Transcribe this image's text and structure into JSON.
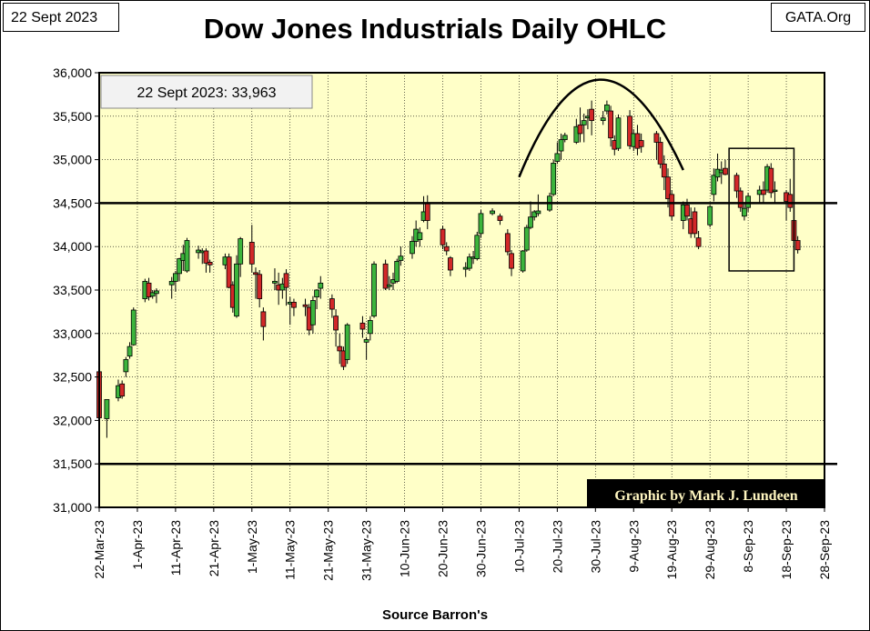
{
  "header": {
    "date_tag": "22 Sept 2023",
    "source_tag": "GATA.Org",
    "title": "Dow Jones Industrials Daily OHLC"
  },
  "footer": {
    "source": "Source Barron's"
  },
  "colors": {
    "plot_bg": "#ffffc8",
    "up": "#3cb43c",
    "down": "#d22828",
    "grid": "#000000",
    "credit_bg": "#000000",
    "credit_text": "#fff6c0"
  },
  "chart_data": {
    "type": "ohlc-candlestick",
    "title": "Dow Jones Industrials Daily OHLC",
    "xlabel": "Source Barron's",
    "ylabel": "",
    "ylim": [
      31000,
      36000
    ],
    "y_ticks": [
      31000,
      31500,
      32000,
      32500,
      33000,
      33500,
      34000,
      34500,
      35000,
      35500,
      36000
    ],
    "y_tick_labels": [
      "31,000",
      "31,500",
      "32,000",
      "32,500",
      "33,000",
      "33,500",
      "34,000",
      "34,500",
      "35,000",
      "35,500",
      "36,000"
    ],
    "x_range_days": [
      0,
      190
    ],
    "x_ticks": [
      {
        "label": "22-Mar-23",
        "day": 0
      },
      {
        "label": "1-Apr-23",
        "day": 10
      },
      {
        "label": "11-Apr-23",
        "day": 20
      },
      {
        "label": "21-Apr-23",
        "day": 30
      },
      {
        "label": "1-May-23",
        "day": 40
      },
      {
        "label": "11-May-23",
        "day": 50
      },
      {
        "label": "21-May-23",
        "day": 60
      },
      {
        "label": "31-May-23",
        "day": 70
      },
      {
        "label": "10-Jun-23",
        "day": 80
      },
      {
        "label": "20-Jun-23",
        "day": 90
      },
      {
        "label": "30-Jun-23",
        "day": 100
      },
      {
        "label": "10-Jul-23",
        "day": 110
      },
      {
        "label": "20-Jul-23",
        "day": 120
      },
      {
        "label": "30-Jul-23",
        "day": 130
      },
      {
        "label": "9-Aug-23",
        "day": 140
      },
      {
        "label": "19-Aug-23",
        "day": 150
      },
      {
        "label": "29-Aug-23",
        "day": 160
      },
      {
        "label": "8-Sep-23",
        "day": 170
      },
      {
        "label": "18-Sep-23",
        "day": 180
      },
      {
        "label": "28-Sep-23",
        "day": 190
      }
    ],
    "reference_lines": [
      34500,
      31500
    ],
    "annotation_box": "22 Sept 2023: 33,963",
    "credit": "Graphic by Mark J. Lundeen",
    "arc": {
      "start_day": 110,
      "start_value": 34800,
      "peak_day": 131,
      "peak_value": 35920,
      "end_day": 153,
      "end_value": 34880
    },
    "highlight_box": {
      "day_start": 165,
      "day_end": 182,
      "value_low": 33720,
      "value_high": 35130
    },
    "candles": [
      {
        "day": 0,
        "open": 32560,
        "high": 32780,
        "low": 31990,
        "close": 32030
      },
      {
        "day": 2,
        "open": 32020,
        "high": 32240,
        "low": 31800,
        "close": 32240
      },
      {
        "day": 5,
        "open": 32260,
        "high": 32470,
        "low": 32220,
        "close": 32400
      },
      {
        "day": 6,
        "open": 32420,
        "high": 32460,
        "low": 32250,
        "close": 32280
      },
      {
        "day": 7,
        "open": 32560,
        "high": 32730,
        "low": 32500,
        "close": 32700
      },
      {
        "day": 8,
        "open": 32740,
        "high": 32900,
        "low": 32710,
        "close": 32850
      },
      {
        "day": 9,
        "open": 32870,
        "high": 33300,
        "low": 32860,
        "close": 33270
      },
      {
        "day": 12,
        "open": 33400,
        "high": 33630,
        "low": 33360,
        "close": 33600
      },
      {
        "day": 13,
        "open": 33580,
        "high": 33640,
        "low": 33380,
        "close": 33420
      },
      {
        "day": 14,
        "open": 33430,
        "high": 33500,
        "low": 33400,
        "close": 33470
      },
      {
        "day": 15,
        "open": 33460,
        "high": 33520,
        "low": 33350,
        "close": 33490
      },
      {
        "day": 19,
        "open": 33560,
        "high": 33650,
        "low": 33400,
        "close": 33600
      },
      {
        "day": 20,
        "open": 33600,
        "high": 33720,
        "low": 33480,
        "close": 33690
      },
      {
        "day": 21,
        "open": 33690,
        "high": 33870,
        "low": 33600,
        "close": 33860
      },
      {
        "day": 22,
        "open": 33840,
        "high": 34020,
        "low": 33720,
        "close": 33920
      },
      {
        "day": 23,
        "open": 33720,
        "high": 34100,
        "low": 33700,
        "close": 34070
      },
      {
        "day": 26,
        "open": 33930,
        "high": 34010,
        "low": 33860,
        "close": 33960
      },
      {
        "day": 27,
        "open": 33930,
        "high": 33980,
        "low": 33800,
        "close": 33950
      },
      {
        "day": 28,
        "open": 33950,
        "high": 33980,
        "low": 33700,
        "close": 33810
      },
      {
        "day": 29,
        "open": 33820,
        "high": 33850,
        "low": 33700,
        "close": 33790
      },
      {
        "day": 33,
        "open": 33790,
        "high": 33920,
        "low": 33740,
        "close": 33880
      },
      {
        "day": 34,
        "open": 33880,
        "high": 33920,
        "low": 33520,
        "close": 33530
      },
      {
        "day": 35,
        "open": 33560,
        "high": 33600,
        "low": 33240,
        "close": 33300
      },
      {
        "day": 36,
        "open": 33200,
        "high": 33900,
        "low": 33180,
        "close": 33800
      },
      {
        "day": 37,
        "open": 33800,
        "high": 34110,
        "low": 33650,
        "close": 34090
      },
      {
        "day": 40,
        "open": 34050,
        "high": 34250,
        "low": 33700,
        "close": 33800
      },
      {
        "day": 41,
        "open": 33700,
        "high": 33760,
        "low": 33400,
        "close": 33680
      },
      {
        "day": 42,
        "open": 33680,
        "high": 33730,
        "low": 33300,
        "close": 33400
      },
      {
        "day": 43,
        "open": 33250,
        "high": 33300,
        "low": 32920,
        "close": 33080
      },
      {
        "day": 46,
        "open": 33580,
        "high": 33750,
        "low": 33500,
        "close": 33600
      },
      {
        "day": 47,
        "open": 33560,
        "high": 33700,
        "low": 33330,
        "close": 33500
      },
      {
        "day": 48,
        "open": 33500,
        "high": 33640,
        "low": 33400,
        "close": 33570
      },
      {
        "day": 49,
        "open": 33690,
        "high": 33740,
        "low": 33320,
        "close": 33530
      },
      {
        "day": 50,
        "open": 33340,
        "high": 33420,
        "low": 33100,
        "close": 33360
      },
      {
        "day": 51,
        "open": 33360,
        "high": 33400,
        "low": 33200,
        "close": 33300
      },
      {
        "day": 54,
        "open": 33330,
        "high": 33400,
        "low": 33200,
        "close": 33310
      },
      {
        "day": 55,
        "open": 33300,
        "high": 33340,
        "low": 32980,
        "close": 33040
      },
      {
        "day": 56,
        "open": 33100,
        "high": 33430,
        "low": 33000,
        "close": 33380
      },
      {
        "day": 57,
        "open": 33420,
        "high": 33510,
        "low": 33280,
        "close": 33500
      },
      {
        "day": 58,
        "open": 33520,
        "high": 33660,
        "low": 33400,
        "close": 33580
      },
      {
        "day": 61,
        "open": 33400,
        "high": 33450,
        "low": 33180,
        "close": 33280
      },
      {
        "day": 62,
        "open": 33200,
        "high": 33280,
        "low": 32850,
        "close": 33040
      },
      {
        "day": 63,
        "open": 32850,
        "high": 33000,
        "low": 32650,
        "close": 32800
      },
      {
        "day": 64,
        "open": 32800,
        "high": 32850,
        "low": 32580,
        "close": 32620
      },
      {
        "day": 65,
        "open": 32700,
        "high": 33120,
        "low": 32650,
        "close": 33100
      },
      {
        "day": 69,
        "open": 33120,
        "high": 33200,
        "low": 32950,
        "close": 33050
      },
      {
        "day": 70,
        "open": 32900,
        "high": 32960,
        "low": 32700,
        "close": 32930
      },
      {
        "day": 71,
        "open": 33000,
        "high": 33200,
        "low": 32920,
        "close": 33150
      },
      {
        "day": 72,
        "open": 33200,
        "high": 33830,
        "low": 33180,
        "close": 33800
      },
      {
        "day": 75,
        "open": 33800,
        "high": 33850,
        "low": 33500,
        "close": 33520
      },
      {
        "day": 76,
        "open": 33540,
        "high": 33660,
        "low": 33500,
        "close": 33560
      },
      {
        "day": 77,
        "open": 33580,
        "high": 33700,
        "low": 33500,
        "close": 33620
      },
      {
        "day": 78,
        "open": 33600,
        "high": 33860,
        "low": 33580,
        "close": 33830
      },
      {
        "day": 79,
        "open": 33840,
        "high": 34000,
        "low": 33780,
        "close": 33890
      },
      {
        "day": 82,
        "open": 33920,
        "high": 34120,
        "low": 33860,
        "close": 34060
      },
      {
        "day": 83,
        "open": 34060,
        "high": 34300,
        "low": 34000,
        "close": 34200
      },
      {
        "day": 84,
        "open": 34080,
        "high": 34220,
        "low": 34000,
        "close": 34160
      },
      {
        "day": 85,
        "open": 34300,
        "high": 34580,
        "low": 34280,
        "close": 34400
      },
      {
        "day": 86,
        "open": 34500,
        "high": 34590,
        "low": 34200,
        "close": 34300
      },
      {
        "day": 90,
        "open": 34200,
        "high": 34240,
        "low": 33970,
        "close": 34020
      },
      {
        "day": 91,
        "open": 34000,
        "high": 34050,
        "low": 33900,
        "close": 33950
      },
      {
        "day": 92,
        "open": 33870,
        "high": 33890,
        "low": 33660,
        "close": 33730
      },
      {
        "day": 96,
        "open": 33740,
        "high": 33820,
        "low": 33650,
        "close": 33760
      },
      {
        "day": 97,
        "open": 33750,
        "high": 33920,
        "low": 33720,
        "close": 33880
      },
      {
        "day": 98,
        "open": 33870,
        "high": 33950,
        "low": 33800,
        "close": 33880
      },
      {
        "day": 99,
        "open": 33860,
        "high": 34170,
        "low": 33840,
        "close": 34130
      },
      {
        "day": 100,
        "open": 34150,
        "high": 34420,
        "low": 34100,
        "close": 34380
      },
      {
        "day": 103,
        "open": 34380,
        "high": 34440,
        "low": 34360,
        "close": 34410
      },
      {
        "day": 105,
        "open": 34350,
        "high": 34380,
        "low": 34250,
        "close": 34300
      },
      {
        "day": 107,
        "open": 34150,
        "high": 34200,
        "low": 33900,
        "close": 33940
      },
      {
        "day": 108,
        "open": 33920,
        "high": 33960,
        "low": 33660,
        "close": 33750
      },
      {
        "day": 111,
        "open": 33720,
        "high": 33960,
        "low": 33700,
        "close": 33950
      },
      {
        "day": 112,
        "open": 33960,
        "high": 34250,
        "low": 33940,
        "close": 34220
      },
      {
        "day": 113,
        "open": 34220,
        "high": 34520,
        "low": 34200,
        "close": 34340
      },
      {
        "day": 114,
        "open": 34340,
        "high": 34420,
        "low": 34300,
        "close": 34400
      },
      {
        "day": 115,
        "open": 34380,
        "high": 34600,
        "low": 34350,
        "close": 34410
      },
      {
        "day": 118,
        "open": 34420,
        "high": 34620,
        "low": 34400,
        "close": 34580
      },
      {
        "day": 119,
        "open": 34600,
        "high": 35000,
        "low": 34580,
        "close": 34960
      },
      {
        "day": 120,
        "open": 34980,
        "high": 35200,
        "low": 34950,
        "close": 35070
      },
      {
        "day": 121,
        "open": 35100,
        "high": 35300,
        "low": 35000,
        "close": 35230
      },
      {
        "day": 122,
        "open": 35230,
        "high": 35310,
        "low": 35200,
        "close": 35280
      },
      {
        "day": 125,
        "open": 35200,
        "high": 35470,
        "low": 35180,
        "close": 35380
      },
      {
        "day": 126,
        "open": 35400,
        "high": 35600,
        "low": 35200,
        "close": 35300
      },
      {
        "day": 127,
        "open": 35400,
        "high": 35530,
        "low": 35200,
        "close": 35450
      },
      {
        "day": 128,
        "open": 35480,
        "high": 35580,
        "low": 35350,
        "close": 35500
      },
      {
        "day": 129,
        "open": 35580,
        "high": 35680,
        "low": 35280,
        "close": 35450
      },
      {
        "day": 132,
        "open": 35450,
        "high": 35560,
        "low": 35400,
        "close": 35480
      },
      {
        "day": 133,
        "open": 35560,
        "high": 35680,
        "low": 35520,
        "close": 35630
      },
      {
        "day": 134,
        "open": 35560,
        "high": 35620,
        "low": 35150,
        "close": 35250
      },
      {
        "day": 135,
        "open": 35220,
        "high": 35280,
        "low": 35050,
        "close": 35120
      },
      {
        "day": 136,
        "open": 35130,
        "high": 35520,
        "low": 35100,
        "close": 35480
      },
      {
        "day": 139,
        "open": 35500,
        "high": 35570,
        "low": 35120,
        "close": 35160
      },
      {
        "day": 140,
        "open": 35150,
        "high": 35350,
        "low": 35100,
        "close": 35300
      },
      {
        "day": 141,
        "open": 35300,
        "high": 35400,
        "low": 35050,
        "close": 35130
      },
      {
        "day": 142,
        "open": 35220,
        "high": 35300,
        "low": 35080,
        "close": 35150
      },
      {
        "day": 146,
        "open": 35300,
        "high": 35330,
        "low": 35000,
        "close": 35200
      },
      {
        "day": 147,
        "open": 35200,
        "high": 35260,
        "low": 34900,
        "close": 34950
      },
      {
        "day": 148,
        "open": 34950,
        "high": 35050,
        "low": 34650,
        "close": 34800
      },
      {
        "day": 149,
        "open": 34800,
        "high": 34900,
        "low": 34450,
        "close": 34550
      },
      {
        "day": 150,
        "open": 34600,
        "high": 34650,
        "low": 34300,
        "close": 34350
      },
      {
        "day": 153,
        "open": 34300,
        "high": 34520,
        "low": 34200,
        "close": 34480
      },
      {
        "day": 154,
        "open": 34480,
        "high": 34550,
        "low": 34300,
        "close": 34350
      },
      {
        "day": 155,
        "open": 34320,
        "high": 34450,
        "low": 34100,
        "close": 34150
      },
      {
        "day": 156,
        "open": 34400,
        "high": 34450,
        "low": 34100,
        "close": 34150
      },
      {
        "day": 157,
        "open": 34100,
        "high": 34180,
        "low": 33970,
        "close": 34000
      },
      {
        "day": 160,
        "open": 34250,
        "high": 34480,
        "low": 34220,
        "close": 34460
      },
      {
        "day": 161,
        "open": 34600,
        "high": 34900,
        "low": 34520,
        "close": 34820
      },
      {
        "day": 162,
        "open": 34800,
        "high": 35070,
        "low": 34750,
        "close": 34890
      },
      {
        "day": 163,
        "open": 34850,
        "high": 34980,
        "low": 34720,
        "close": 34880
      },
      {
        "day": 164,
        "open": 34900,
        "high": 35000,
        "low": 34820,
        "close": 34830
      },
      {
        "day": 167,
        "open": 34820,
        "high": 34850,
        "low": 34560,
        "close": 34640
      },
      {
        "day": 168,
        "open": 34640,
        "high": 34680,
        "low": 34400,
        "close": 34450
      },
      {
        "day": 169,
        "open": 34350,
        "high": 34500,
        "low": 34300,
        "close": 34440
      },
      {
        "day": 170,
        "open": 34450,
        "high": 34620,
        "low": 34400,
        "close": 34580
      },
      {
        "day": 173,
        "open": 34600,
        "high": 34700,
        "low": 34500,
        "close": 34650
      },
      {
        "day": 174,
        "open": 34650,
        "high": 34750,
        "low": 34500,
        "close": 34600
      },
      {
        "day": 175,
        "open": 34650,
        "high": 34950,
        "low": 34620,
        "close": 34920
      },
      {
        "day": 176,
        "open": 34900,
        "high": 34960,
        "low": 34560,
        "close": 34620
      },
      {
        "day": 177,
        "open": 34650,
        "high": 34750,
        "low": 34500,
        "close": 34650
      },
      {
        "day": 180,
        "open": 34620,
        "high": 34650,
        "low": 34300,
        "close": 34520
      },
      {
        "day": 181,
        "open": 34600,
        "high": 34780,
        "low": 34400,
        "close": 34450
      },
      {
        "day": 182,
        "open": 34300,
        "high": 34350,
        "low": 34000,
        "close": 34070
      },
      {
        "day": 183,
        "open": 34070,
        "high": 34120,
        "low": 33920,
        "close": 33963
      }
    ]
  }
}
